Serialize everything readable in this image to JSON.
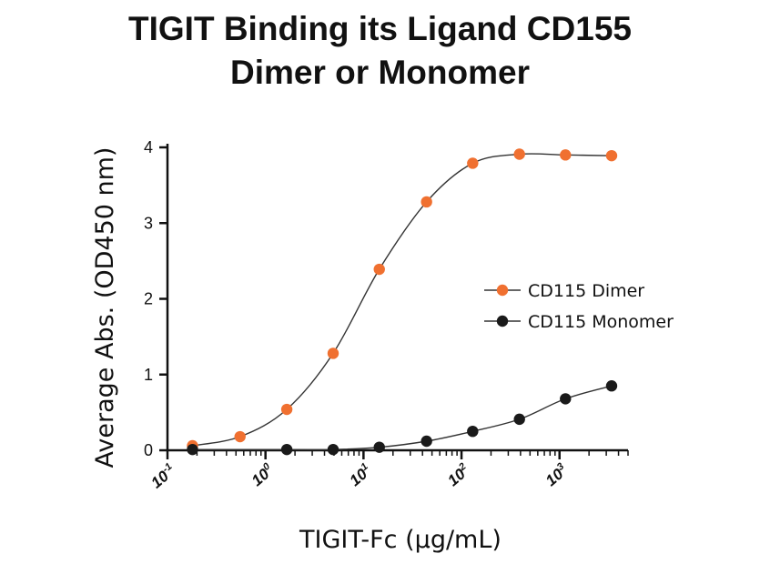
{
  "chart_data": {
    "type": "scatter",
    "title_line1": "TIGIT Binding its Ligand CD155",
    "title_line2": "Dimer or Monomer",
    "xlabel": "TIGIT-Fc (µg/mL)",
    "ylabel": "Average Abs. (OD450 nm)",
    "xscale": "log",
    "xlim": [
      0.1,
      5000
    ],
    "ylim": [
      0,
      4
    ],
    "yticks": [
      0,
      1,
      2,
      3,
      4
    ],
    "xticks": [
      {
        "value": 0.1,
        "base": "10",
        "exp": "-1"
      },
      {
        "value": 1,
        "base": "10",
        "exp": "0"
      },
      {
        "value": 10,
        "base": "10",
        "exp": "1"
      },
      {
        "value": 100,
        "base": "10",
        "exp": "2"
      },
      {
        "value": 1000,
        "base": "10",
        "exp": "3"
      }
    ],
    "legend_position": "right",
    "series": [
      {
        "name": "CD115 Dimer",
        "color": "#F07030",
        "x": [
          0.18,
          0.55,
          1.65,
          4.9,
          14.5,
          44,
          130,
          390,
          1150,
          3400
        ],
        "y": [
          0.06,
          0.18,
          0.54,
          1.28,
          2.39,
          3.28,
          3.79,
          3.91,
          3.9,
          3.89
        ]
      },
      {
        "name": "CD115 Monomer",
        "color": "#1a1a1a",
        "x": [
          0.18,
          1.65,
          4.9,
          14.5,
          44,
          130,
          390,
          1150,
          3400
        ],
        "y": [
          0.01,
          0.01,
          0.01,
          0.04,
          0.12,
          0.25,
          0.41,
          0.68,
          0.85
        ]
      }
    ]
  }
}
